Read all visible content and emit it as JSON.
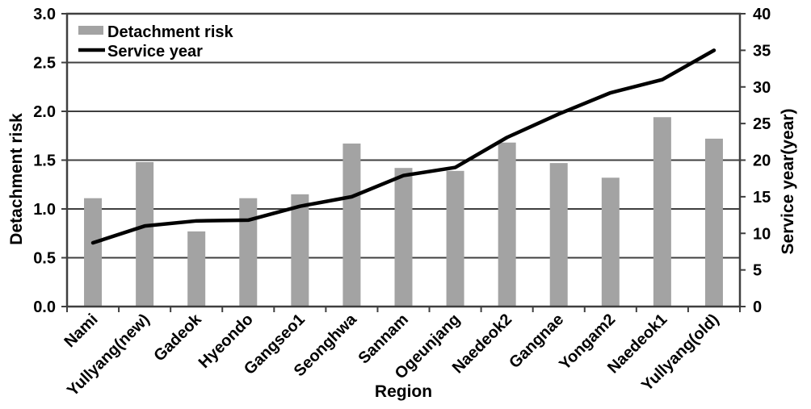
{
  "chart_data": {
    "type": "combo_bar_line",
    "title": "",
    "categories": [
      "Nami",
      "Yullyang(new)",
      "Gadeok",
      "Hyeondo",
      "Gangseo1",
      "Seonghwa",
      "Sannam",
      "Ogeunjang",
      "Naedeok2",
      "Gangnae",
      "Yongam2",
      "Naedeok1",
      "Yullyang(old)"
    ],
    "series": [
      {
        "name": "Detachment risk",
        "type": "bar",
        "axis": "left",
        "color": "#a3a3a3",
        "values": [
          1.11,
          1.48,
          0.77,
          1.11,
          1.15,
          1.67,
          1.42,
          1.39,
          1.68,
          1.47,
          1.32,
          1.94,
          1.72
        ]
      },
      {
        "name": "Service year",
        "type": "line",
        "axis": "right",
        "color": "#000000",
        "values": [
          8.7,
          11.0,
          11.7,
          11.8,
          13.7,
          15.0,
          17.9,
          19.0,
          23.1,
          26.3,
          29.2,
          31.0,
          35.0
        ]
      }
    ],
    "axes": {
      "left": {
        "label": "Detachment risk",
        "min": 0,
        "max": 3,
        "step": 0.5,
        "tick_labels": [
          "0.0",
          "0.5",
          "1.0",
          "1.5",
          "2.0",
          "2.5",
          "3.0"
        ]
      },
      "right": {
        "label": "Service year(year)",
        "min": 0,
        "max": 40,
        "step": 5,
        "tick_labels": [
          "0",
          "5",
          "10",
          "15",
          "20",
          "25",
          "30",
          "35",
          "40"
        ]
      },
      "x": {
        "label": "Region",
        "tick_rotation_deg": 45
      }
    },
    "legend": {
      "position": "top-left",
      "entries": [
        "Detachment risk",
        "Service year"
      ]
    },
    "grid": "horizontal",
    "colors": {
      "background": "#ffffff",
      "grid": "#3f3f3f",
      "border": "#3f3f3f",
      "text": "#000000"
    }
  }
}
